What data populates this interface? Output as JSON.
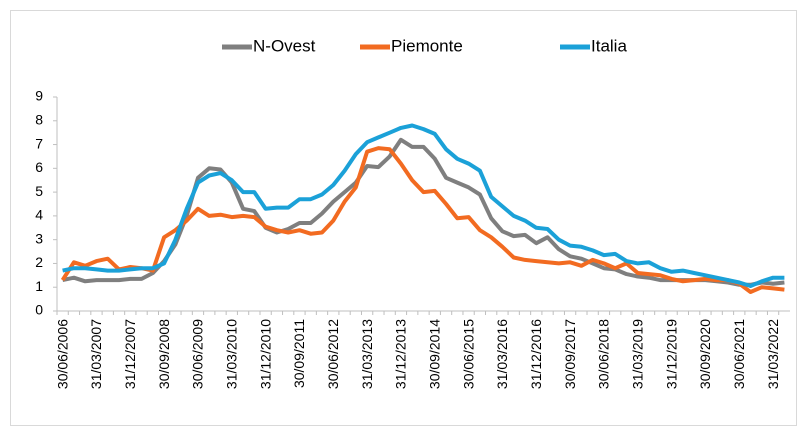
{
  "chart_data": {
    "type": "line",
    "categories": [
      "30/06/2006",
      null,
      null,
      "31/03/2007",
      null,
      null,
      "31/12/2007",
      null,
      null,
      "30/09/2008",
      null,
      null,
      "30/06/2009",
      null,
      null,
      "31/03/2010",
      null,
      null,
      "31/12/2010",
      null,
      null,
      "30/09/2011",
      null,
      null,
      "30/06/2012",
      null,
      null,
      "31/03/2013",
      null,
      null,
      "31/12/2013",
      null,
      null,
      "30/09/2014",
      null,
      null,
      "30/06/2015",
      null,
      null,
      "31/03/2016",
      null,
      null,
      "31/12/2016",
      null,
      null,
      "30/09/2017",
      null,
      null,
      "30/06/2018",
      null,
      null,
      "31/03/2019",
      null,
      null,
      "31/12/2019",
      null,
      null,
      "30/09/2020",
      null,
      null,
      "30/06/2021",
      null,
      null,
      "31/03/2022",
      null
    ],
    "series": [
      {
        "name": "N-Ovest",
        "color": "#7f7f7f",
        "values": [
          1.3,
          1.4,
          1.25,
          1.3,
          1.3,
          1.3,
          1.35,
          1.35,
          1.6,
          2.1,
          2.8,
          4.0,
          5.6,
          6.0,
          5.95,
          5.4,
          4.3,
          4.2,
          3.5,
          3.3,
          3.45,
          3.7,
          3.7,
          4.1,
          4.6,
          5.0,
          5.4,
          6.1,
          6.05,
          6.5,
          7.2,
          6.9,
          6.9,
          6.4,
          5.6,
          5.4,
          5.2,
          4.9,
          3.9,
          3.35,
          3.15,
          3.2,
          2.85,
          3.1,
          2.6,
          2.3,
          2.2,
          2.0,
          1.8,
          1.75,
          1.55,
          1.45,
          1.4,
          1.3,
          1.3,
          1.3,
          1.3,
          1.3,
          1.25,
          1.2,
          1.1,
          1.1,
          1.2,
          1.15,
          1.2
        ]
      },
      {
        "name": "Piemonte",
        "color": "#f26b21",
        "values": [
          1.3,
          2.05,
          1.9,
          2.1,
          2.2,
          1.75,
          1.85,
          1.8,
          1.7,
          3.1,
          3.4,
          3.8,
          4.3,
          4.0,
          4.05,
          3.95,
          4.0,
          3.95,
          3.55,
          3.4,
          3.3,
          3.4,
          3.25,
          3.3,
          3.8,
          4.6,
          5.2,
          6.7,
          6.85,
          6.8,
          6.2,
          5.5,
          5.0,
          5.05,
          4.5,
          3.9,
          3.95,
          3.4,
          3.1,
          2.7,
          2.25,
          2.15,
          2.1,
          2.05,
          2.0,
          2.05,
          1.9,
          2.15,
          2.0,
          1.8,
          2.0,
          1.6,
          1.55,
          1.5,
          1.35,
          1.25,
          1.3,
          1.35,
          1.3,
          1.3,
          1.15,
          0.8,
          1.0,
          0.95,
          0.9
        ]
      },
      {
        "name": "Italia",
        "color": "#1ba1d8",
        "values": [
          1.7,
          1.8,
          1.8,
          1.75,
          1.7,
          1.7,
          1.75,
          1.8,
          1.8,
          2.0,
          3.0,
          4.3,
          5.4,
          5.7,
          5.8,
          5.5,
          5.0,
          5.0,
          4.3,
          4.35,
          4.35,
          4.7,
          4.7,
          4.9,
          5.3,
          5.9,
          6.6,
          7.1,
          7.3,
          7.5,
          7.7,
          7.8,
          7.65,
          7.45,
          6.8,
          6.4,
          6.2,
          5.9,
          4.8,
          4.4,
          4.0,
          3.8,
          3.5,
          3.45,
          3.0,
          2.75,
          2.7,
          2.55,
          2.35,
          2.4,
          2.1,
          2.0,
          2.05,
          1.8,
          1.65,
          1.7,
          1.6,
          1.5,
          1.4,
          1.3,
          1.2,
          1.05,
          1.25,
          1.4,
          1.4
        ]
      }
    ],
    "ylim": [
      0,
      9
    ],
    "yticks": [
      0,
      1,
      2,
      3,
      4,
      5,
      6,
      7,
      8,
      9
    ],
    "legend": "top"
  }
}
